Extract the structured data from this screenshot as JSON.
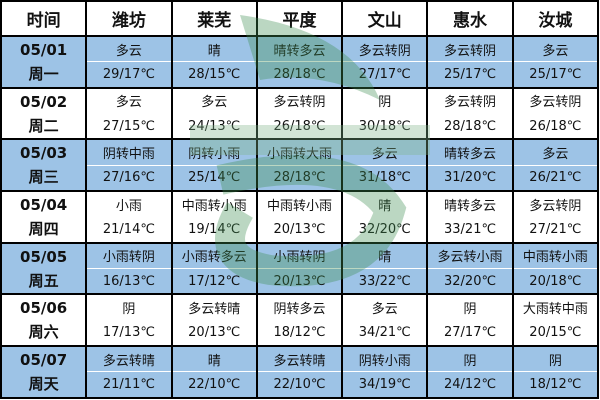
{
  "headers": [
    "时间",
    "潍坊",
    "莱芜",
    "平度",
    "文山",
    "惠水",
    "汝城"
  ],
  "days": [
    {
      "date": "05/01",
      "weekday": "周一",
      "weather": [
        "多云",
        "晴",
        "晴转多云",
        "多云转阴",
        "多云转阴",
        "多云"
      ],
      "temps": [
        "29/17℃",
        "28/15℃",
        "28/18℃",
        "27/17℃",
        "25/17℃",
        "25/17℃"
      ]
    },
    {
      "date": "05/02",
      "weekday": "周二",
      "weather": [
        "多云",
        "多云",
        "多云转阴",
        "阴",
        "多云转阴",
        "多云转阴"
      ],
      "temps": [
        "27/15℃",
        "24/13℃",
        "26/18℃",
        "30/18℃",
        "28/18℃",
        "26/18℃"
      ]
    },
    {
      "date": "05/03",
      "weekday": "周三",
      "weather": [
        "阴转中雨",
        "阴转小雨",
        "小雨转大雨",
        "多云",
        "晴转多云",
        "多云"
      ],
      "temps": [
        "27/16℃",
        "25/14℃",
        "28/18℃",
        "31/18℃",
        "31/20℃",
        "26/21℃"
      ]
    },
    {
      "date": "05/04",
      "weekday": "周四",
      "weather": [
        "小雨",
        "中雨转小雨",
        "中雨转小雨",
        "晴",
        "晴转多云",
        "多云转阴"
      ],
      "temps": [
        "21/14℃",
        "19/14℃",
        "20/13℃",
        "32/20℃",
        "33/21℃",
        "27/21℃"
      ]
    },
    {
      "date": "05/05",
      "weekday": "周五",
      "weather": [
        "小雨转阴",
        "小雨转多云",
        "小雨转阴",
        "晴",
        "多云转小雨",
        "中雨转小雨"
      ],
      "temps": [
        "16/13℃",
        "17/12℃",
        "20/13℃",
        "33/22℃",
        "32/20℃",
        "20/18℃"
      ]
    },
    {
      "date": "05/06",
      "weekday": "周六",
      "weather": [
        "阴",
        "多云转晴",
        "阴转多云",
        "多云",
        "阴",
        "大雨转中雨"
      ],
      "temps": [
        "17/13℃",
        "20/13℃",
        "18/12℃",
        "34/21℃",
        "27/17℃",
        "20/15℃"
      ]
    },
    {
      "date": "05/07",
      "weekday": "周天",
      "weather": [
        "多云转晴",
        "晴",
        "多云转晴",
        "阴转小雨",
        "阴",
        "阴"
      ],
      "temps": [
        "21/11℃",
        "22/10℃",
        "22/10℃",
        "34/19℃",
        "24/12℃",
        "18/12℃"
      ]
    }
  ],
  "colors": {
    "highlight_row": "#9dc3e6",
    "watermark": "#5a9e6a"
  }
}
